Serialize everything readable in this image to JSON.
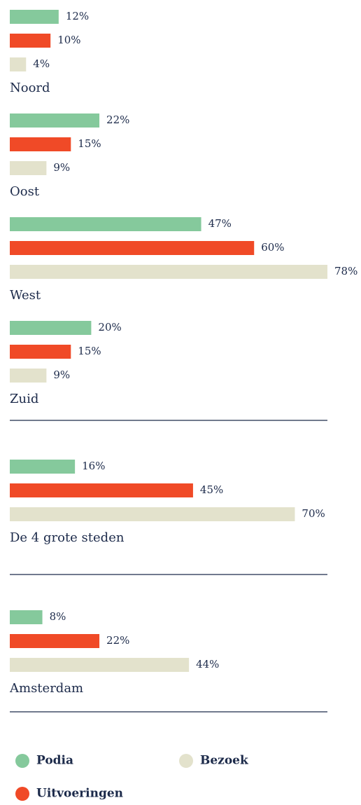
{
  "chart_data": {
    "type": "bar",
    "orientation": "horizontal",
    "categories": [
      "Noord",
      "Oost",
      "West",
      "Zuid",
      "De 4 grote steden",
      "Amsterdam"
    ],
    "series": [
      {
        "name": "Podia",
        "color": "#85c99c",
        "values": [
          12,
          22,
          47,
          20,
          16,
          8
        ],
        "value_labels": [
          "12%",
          "22%",
          "47%",
          "20%",
          "16%",
          "8%"
        ]
      },
      {
        "name": "Uitvoeringen",
        "color": "#f04a27",
        "values": [
          10,
          15,
          60,
          15,
          45,
          22
        ],
        "value_labels": [
          "10%",
          "15%",
          "60%",
          "15%",
          "45%",
          "22%"
        ]
      },
      {
        "name": "Bezoek",
        "color": "#e3e2cc",
        "values": [
          4,
          9,
          78,
          9,
          70,
          44
        ],
        "value_labels": [
          "4%",
          "9%",
          "78%",
          "9%",
          "70%",
          "44%"
        ]
      }
    ]
  }
}
